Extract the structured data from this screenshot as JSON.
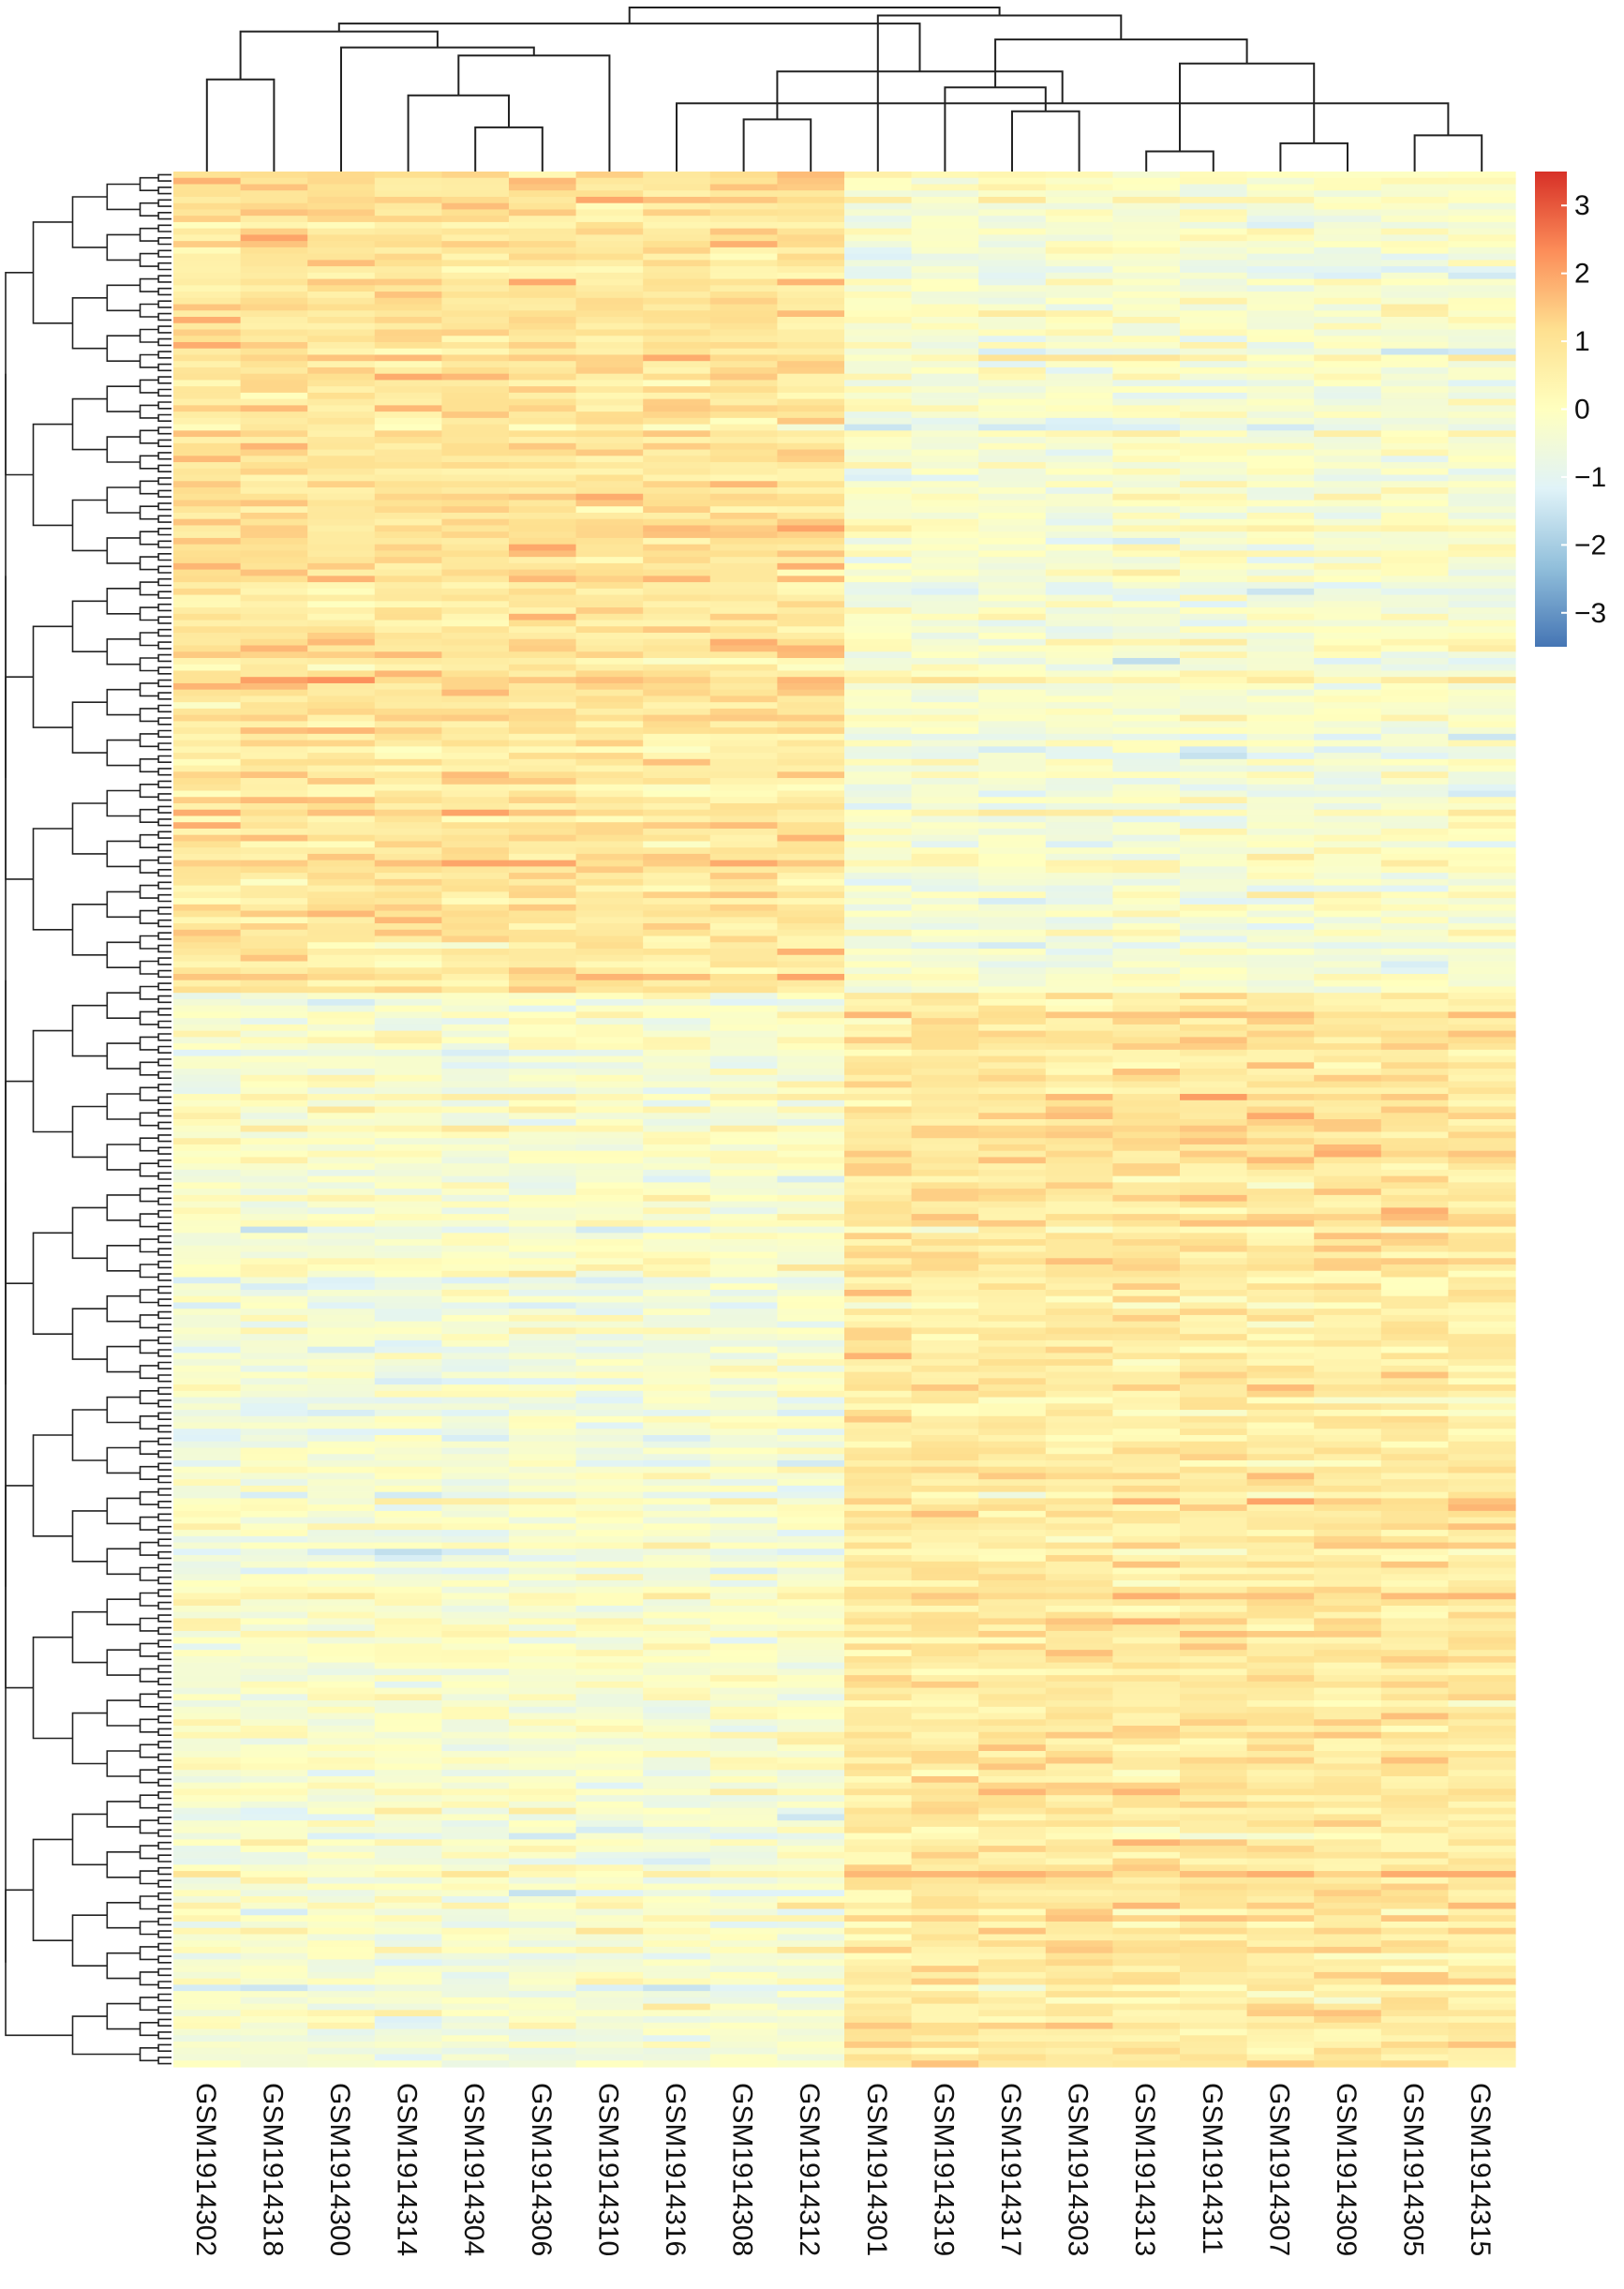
{
  "chart_data": {
    "type": "heatmap",
    "title": "",
    "xlabel": "",
    "ylabel": "",
    "columns": [
      "GSM1914302",
      "GSM1914318",
      "GSM1914300",
      "GSM1914314",
      "GSM1914304",
      "GSM1914306",
      "GSM1914310",
      "GSM1914316",
      "GSM1914308",
      "GSM1914312",
      "GSM1914301",
      "GSM1914319",
      "GSM1914317",
      "GSM1914303",
      "GSM1914313",
      "GSM1914311",
      "GSM1914307",
      "GSM1914309",
      "GSM1914305",
      "GSM1914315"
    ],
    "row_count": 300,
    "value_range": [
      -3.5,
      3.5
    ],
    "legend": {
      "ticks": [
        3,
        2,
        1,
        0,
        -1,
        -2,
        -3
      ],
      "tick_labels": [
        "3",
        "2",
        "1",
        "0",
        "−1",
        "−2",
        "−3"
      ],
      "placement": "top-right"
    },
    "colorscale": [
      "#4575b4",
      "#91bfdb",
      "#e0f3f8",
      "#ffffbf",
      "#fee090",
      "#fc8d59",
      "#d73027"
    ],
    "column_groups": [
      {
        "columns": [
          0,
          9
        ],
        "row_blocks": [
          {
            "rows": [
              0,
              130
            ],
            "mean": 0.9
          },
          {
            "rows": [
              130,
              300
            ],
            "mean": -0.3
          }
        ]
      },
      {
        "columns": [
          10,
          19
        ],
        "row_blocks": [
          {
            "rows": [
              0,
              130
            ],
            "mean": -0.3
          },
          {
            "rows": [
              130,
              300
            ],
            "mean": 0.8
          }
        ]
      }
    ],
    "column_dendrogram": [
      {
        "merge": [
          14,
          15
        ]
      },
      {
        "merge": [
          16,
          17
        ]
      },
      {
        "merge": [
          18,
          19
        ]
      },
      {
        "merge": [
          4,
          5
        ]
      },
      {
        "merge": [
          8,
          9
        ]
      },
      {
        "merge": [
          12,
          13
        ]
      },
      {
        "merge": [
          7,
          22
        ]
      },
      {
        "merge": [
          3,
          23
        ]
      },
      {
        "merge": [
          11,
          25
        ]
      },
      {
        "merge": [
          0,
          1
        ]
      },
      {
        "merge": [
          26,
          24
        ]
      },
      {
        "merge": [
          21,
          20
        ]
      },
      {
        "merge": [
          27,
          6
        ]
      },
      {
        "merge": [
          2,
          32
        ]
      },
      {
        "merge": [
          28,
          31
        ]
      },
      {
        "merge": [
          29,
          33
        ]
      },
      {
        "merge": [
          30,
          35
        ]
      },
      {
        "merge": [
          10,
          34
        ]
      },
      {
        "merge": [
          36,
          37
        ]
      }
    ]
  }
}
